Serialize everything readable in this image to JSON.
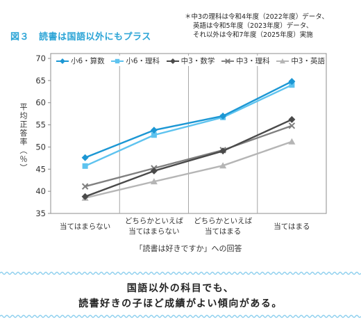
{
  "figure": {
    "label": "図３",
    "title": "読書は国語以外にもプラス",
    "note": [
      "＊中3の理科は令和4年度（2022年度）データ、",
      "英語は令和5年度（2023年度）データ、",
      "それ以外は令和7年度（2025年度）実施"
    ]
  },
  "chart_data": {
    "type": "line",
    "categories": [
      "当てはまらない",
      "どちらかといえば\n当てはまらない",
      "どちらかといえば\n当てはまる",
      "当てはまる"
    ],
    "series": [
      {
        "name": "小6・算数",
        "values": [
          47.6,
          53.8,
          57.0,
          64.8
        ],
        "color": "#1c97d4",
        "marker": "diamond"
      },
      {
        "name": "小6・理科",
        "values": [
          45.7,
          52.7,
          56.7,
          64.0
        ],
        "color": "#5ec3ef",
        "marker": "square"
      },
      {
        "name": "中3・数学",
        "values": [
          38.8,
          44.6,
          49.1,
          56.2
        ],
        "color": "#4a4a4a",
        "marker": "diamond"
      },
      {
        "name": "中3・理科",
        "values": [
          41.1,
          45.2,
          49.3,
          54.8
        ],
        "color": "#808080",
        "marker": "x"
      },
      {
        "name": "中3・英語",
        "values": [
          38.5,
          42.2,
          45.8,
          51.2
        ],
        "color": "#b5b5b5",
        "marker": "triangle"
      }
    ],
    "xlabel": "「読書は好きですか」への回答",
    "ylabel": "平均正答率（％）",
    "ylim": [
      35,
      70
    ],
    "yticks": [
      70,
      65,
      60,
      55,
      50,
      45,
      40,
      35
    ],
    "grid": false,
    "legend": "top"
  },
  "caption": {
    "lines": [
      "国語以外の科目でも、",
      "読書好きの子ほど成績がよい傾向がある。"
    ]
  },
  "colors": {
    "title": "#2ba4d6",
    "wave": "#8fd0ee",
    "axis": "#8c8c8c",
    "divider": "#a6a6a6"
  }
}
